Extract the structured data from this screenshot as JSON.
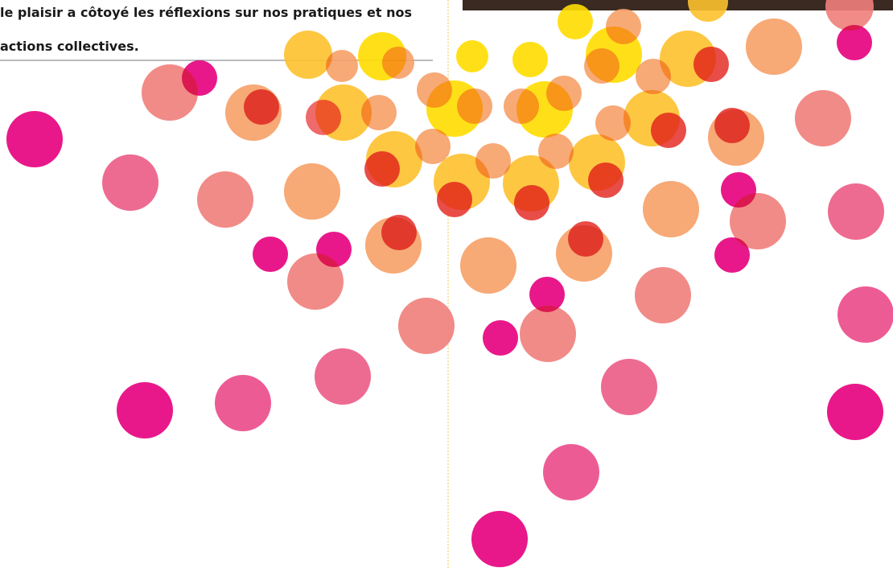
{
  "paragraph": {
    "lines": [
      "le plaisir a côtoyé les réflexions sur nos pratiques et nos",
      "actions collectives."
    ]
  }
}
